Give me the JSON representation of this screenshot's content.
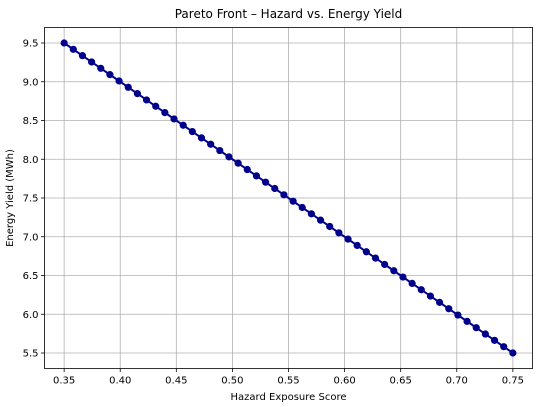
{
  "chart_data": {
    "type": "line",
    "title": "Pareto Front – Hazard vs. Energy Yield",
    "xlabel": "Hazard Exposure Score",
    "ylabel": "Energy Yield (MWh)",
    "xlim": [
      0.3325,
      0.7675
    ],
    "ylim": [
      5.3,
      9.7
    ],
    "xticks": [
      "0.35",
      "0.40",
      "0.45",
      "0.50",
      "0.55",
      "0.60",
      "0.65",
      "0.70",
      "0.75"
    ],
    "yticks": [
      "5.5",
      "6.0",
      "6.5",
      "7.0",
      "7.5",
      "8.0",
      "8.5",
      "9.0",
      "9.5"
    ],
    "grid": true,
    "colors": {
      "line": "#00008b",
      "marker": "#00008b",
      "grid": "#b0b0b0"
    },
    "series": [
      {
        "x": [
          0.35,
          0.3581632653,
          0.3663265306,
          0.3744897959,
          0.3826530612,
          0.3908163265,
          0.3989795918,
          0.4071428571,
          0.4153061224,
          0.4234693878,
          0.4316326531,
          0.4397959184,
          0.4479591837,
          0.456122449,
          0.4642857143,
          0.4724489796,
          0.4806122449,
          0.4887755102,
          0.4969387755,
          0.5051020408,
          0.5132653061,
          0.5214285714,
          0.5295918367,
          0.537755102,
          0.5459183673,
          0.5540816327,
          0.562244898,
          0.5704081633,
          0.5785714286,
          0.5867346939,
          0.5948979592,
          0.6030612245,
          0.6112244898,
          0.6193877551,
          0.6275510204,
          0.6357142857,
          0.643877551,
          0.6520408163,
          0.6602040816,
          0.6683673469,
          0.6765306122,
          0.6846938776,
          0.6928571429,
          0.7010204082,
          0.7091836735,
          0.7173469388,
          0.7255102041,
          0.7336734694,
          0.7418367347,
          0.75
        ],
        "y": [
          9.5,
          9.4183673469,
          9.3367346939,
          9.2551020408,
          9.1734693878,
          9.0918367347,
          9.0102040816,
          8.9285714286,
          8.8469387755,
          8.7653061224,
          8.6836734694,
          8.6020408163,
          8.5204081633,
          8.4387755102,
          8.3571428571,
          8.2755102041,
          8.193877551,
          8.112244898,
          8.0306122449,
          7.9489795918,
          7.8673469388,
          7.7857142857,
          7.7040816327,
          7.6224489796,
          7.5408163265,
          7.4591836735,
          7.3775510204,
          7.2959183673,
          7.2142857143,
          7.1326530612,
          7.0510204082,
          6.9693877551,
          6.887755102,
          6.806122449,
          6.7244897959,
          6.6428571429,
          6.5612244898,
          6.4795918367,
          6.3979591837,
          6.3163265306,
          6.2346938776,
          6.1530612245,
          6.0714285714,
          5.9897959184,
          5.9081632653,
          5.8265306122,
          5.7448979592,
          5.6632653061,
          5.5816326531,
          5.5
        ]
      }
    ]
  }
}
